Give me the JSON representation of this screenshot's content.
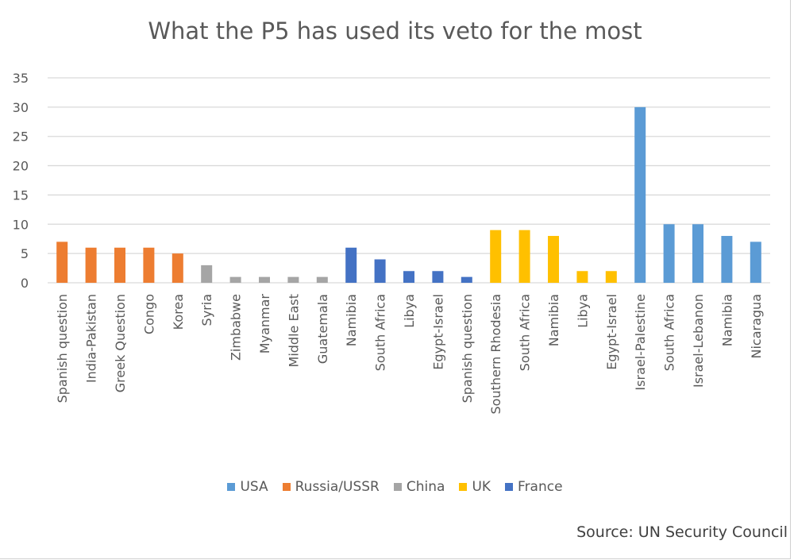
{
  "chart_data": {
    "type": "bar",
    "title": "What the P5 has used its veto for the most",
    "source": "Source: UN Security Council",
    "ylim": [
      0,
      35
    ],
    "yticks": [
      0,
      5,
      10,
      15,
      20,
      25,
      30,
      35
    ],
    "grid": true,
    "legend_placement": "bottom",
    "legend": [
      {
        "name": "USA",
        "color": "#5b9bd5"
      },
      {
        "name": "Russia/USSR",
        "color": "#ed7d31"
      },
      {
        "name": "China",
        "color": "#a5a5a5"
      },
      {
        "name": "UK",
        "color": "#ffc000"
      },
      {
        "name": "France",
        "color": "#4472c4"
      }
    ],
    "categories": [
      "Spanish question",
      "India-Pakistan",
      "Greek Question",
      "Congo",
      "Korea",
      "Syria",
      "Zimbabwe",
      "Myanmar",
      "Middle East",
      "Guatemala",
      "Namibia",
      "South Africa",
      "Libya",
      "Egypt-Israel",
      "Spanish question",
      "Southern Rhodesia",
      "South Africa",
      "Namibia",
      "Libya",
      "Egypt-Israel",
      "Israel-Palestine",
      "South Africa",
      "Israel-Lebanon",
      "Namibia",
      "Nicaragua"
    ],
    "values": [
      7,
      6,
      6,
      6,
      5,
      3,
      1,
      1,
      1,
      1,
      6,
      4,
      2,
      2,
      1,
      9,
      9,
      8,
      2,
      2,
      30,
      10,
      10,
      8,
      7
    ],
    "series_of_bar": [
      "Russia/USSR",
      "Russia/USSR",
      "Russia/USSR",
      "Russia/USSR",
      "Russia/USSR",
      "China",
      "China",
      "China",
      "China",
      "China",
      "France",
      "France",
      "France",
      "France",
      "France",
      "UK",
      "UK",
      "UK",
      "UK",
      "UK",
      "USA",
      "USA",
      "USA",
      "USA",
      "USA"
    ]
  }
}
